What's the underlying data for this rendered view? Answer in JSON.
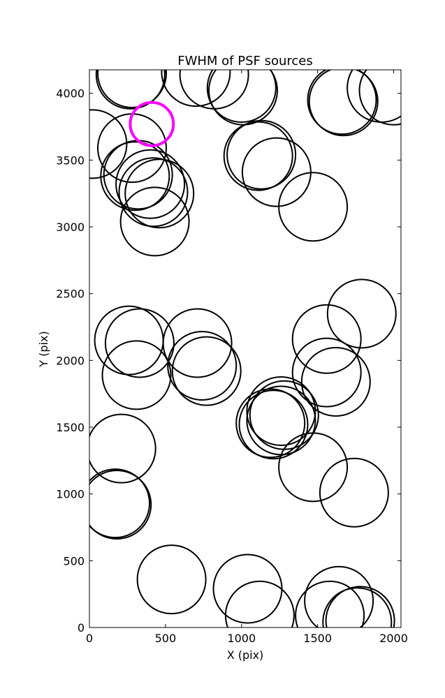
{
  "chart_data": {
    "type": "scatter",
    "title": "FWHM of PSF sources",
    "xlabel": "X (pix)",
    "ylabel": "Y (pix)",
    "xlim": [
      0,
      2048
    ],
    "ylim": [
      0,
      4176
    ],
    "xticks": [
      0,
      500,
      1000,
      1500,
      2000
    ],
    "yticks": [
      0,
      500,
      1000,
      1500,
      2000,
      2500,
      3000,
      3500,
      4000
    ],
    "grid": false,
    "circle_radius_x_units": 225,
    "colors": {
      "default": "#000000",
      "highlight": "#ff00ff"
    },
    "sources": [
      {
        "x": 270,
        "y": 4140
      },
      {
        "x": 280,
        "y": 4150
      },
      {
        "x": 700,
        "y": 4160
      },
      {
        "x": 820,
        "y": 4140
      },
      {
        "x": 1010,
        "y": 4020
      },
      {
        "x": 1000,
        "y": 4040
      },
      {
        "x": 1670,
        "y": 3940
      },
      {
        "x": 1660,
        "y": 3950
      },
      {
        "x": 1920,
        "y": 4040
      },
      {
        "x": 2000,
        "y": 4020
      },
      {
        "x": 20,
        "y": 3620
      },
      {
        "x": 280,
        "y": 3590
      },
      {
        "x": 300,
        "y": 3380
      },
      {
        "x": 320,
        "y": 3390
      },
      {
        "x": 400,
        "y": 3320
      },
      {
        "x": 460,
        "y": 3250
      },
      {
        "x": 420,
        "y": 3260
      },
      {
        "x": 430,
        "y": 3040
      },
      {
        "x": 1110,
        "y": 3530
      },
      {
        "x": 1130,
        "y": 3540
      },
      {
        "x": 1230,
        "y": 3410
      },
      {
        "x": 1470,
        "y": 3150
      },
      {
        "x": 410,
        "y": 3770,
        "highlight": true
      },
      {
        "x": 260,
        "y": 2150
      },
      {
        "x": 330,
        "y": 2130
      },
      {
        "x": 310,
        "y": 1890
      },
      {
        "x": 710,
        "y": 2130
      },
      {
        "x": 740,
        "y": 1960
      },
      {
        "x": 770,
        "y": 1920
      },
      {
        "x": 1560,
        "y": 2160
      },
      {
        "x": 1790,
        "y": 2350
      },
      {
        "x": 1560,
        "y": 1910
      },
      {
        "x": 1620,
        "y": 1840
      },
      {
        "x": 1280,
        "y": 1590
      },
      {
        "x": 1260,
        "y": 1620
      },
      {
        "x": 1190,
        "y": 1530
      },
      {
        "x": 1210,
        "y": 1520
      },
      {
        "x": 1260,
        "y": 1550
      },
      {
        "x": 1470,
        "y": 1200
      },
      {
        "x": 1740,
        "y": 1010
      },
      {
        "x": 210,
        "y": 1340
      },
      {
        "x": 170,
        "y": 930
      },
      {
        "x": 180,
        "y": 920
      },
      {
        "x": 540,
        "y": 360
      },
      {
        "x": 1040,
        "y": 290
      },
      {
        "x": 1120,
        "y": 90
      },
      {
        "x": 1640,
        "y": 200
      },
      {
        "x": 1580,
        "y": 90
      },
      {
        "x": 1780,
        "y": 50
      },
      {
        "x": 1760,
        "y": 40
      }
    ]
  }
}
